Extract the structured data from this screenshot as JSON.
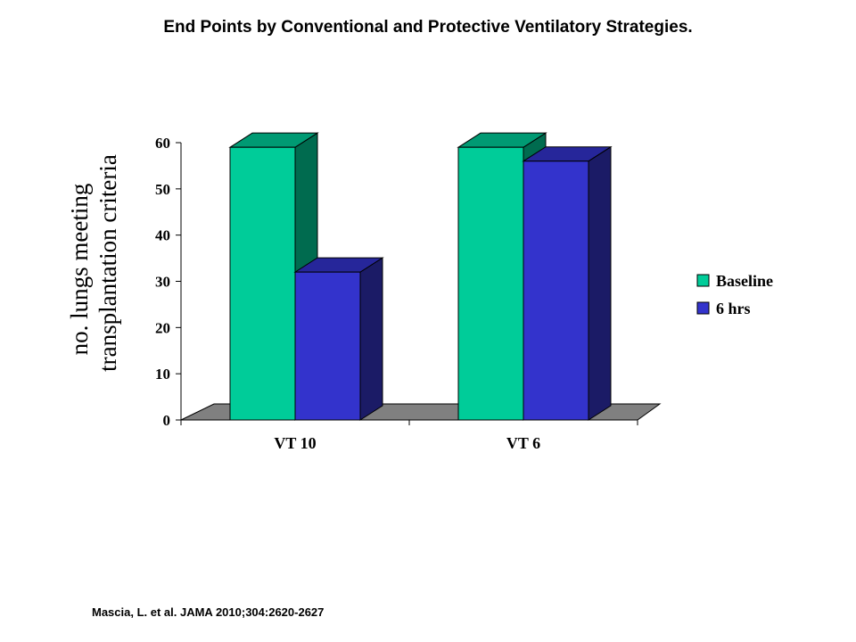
{
  "title": "End Points by Conventional and Protective Ventilatory Strategies.",
  "citation": "Mascia, L. et al. JAMA 2010;304:2620-2627",
  "chart_data": {
    "type": "bar",
    "style": "3d-clustered-column",
    "title": "",
    "xlabel": "",
    "ylabel_lines": [
      "no. lungs meeting",
      "transplantation criteria"
    ],
    "categories": [
      "VT 10",
      "VT 6"
    ],
    "series": [
      {
        "name": "Baseline",
        "values": [
          59,
          59
        ],
        "color": "#00CC99",
        "side_color": "#006B4F",
        "top_color": "#009A73"
      },
      {
        "name": "6 hrs",
        "values": [
          32,
          56
        ],
        "color": "#3333CC",
        "side_color": "#1B1B66",
        "top_color": "#26269A"
      }
    ],
    "ylim": [
      0,
      60
    ],
    "yticks": [
      0,
      10,
      20,
      30,
      40,
      50,
      60
    ],
    "floor_color": "#808080",
    "grid": false,
    "legend_position": "right"
  }
}
